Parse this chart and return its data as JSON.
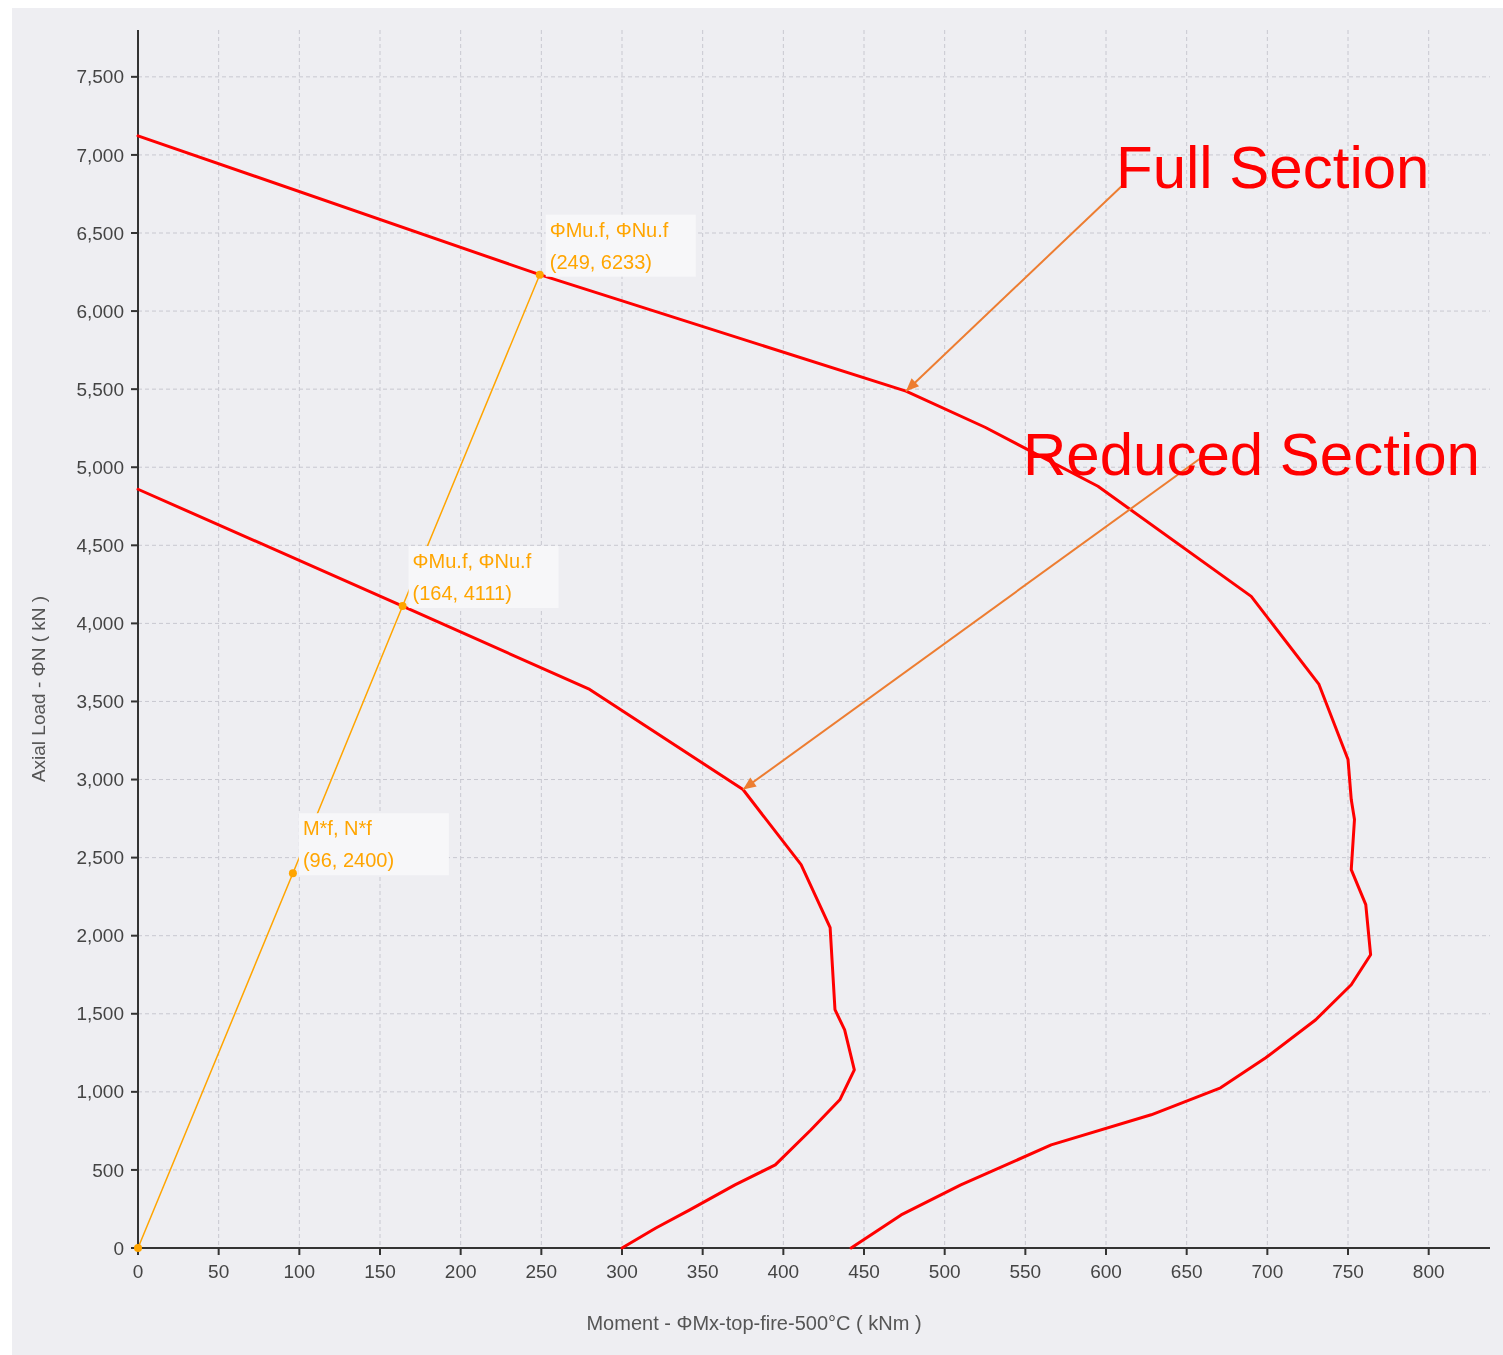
{
  "chart_data": {
    "type": "line",
    "xlabel": "Moment - ΦMx-top-fire-500°C ( kNm )",
    "ylabel": "Axial Load - ΦN ( kN )",
    "xlim": [
      0,
      838
    ],
    "ylim": [
      0,
      7800
    ],
    "xticks": [
      0,
      50,
      100,
      150,
      200,
      250,
      300,
      350,
      400,
      450,
      500,
      550,
      600,
      650,
      700,
      750,
      800
    ],
    "yticks": [
      0,
      500,
      {
        "value": 1000,
        "label": "1,000"
      },
      {
        "value": 1500,
        "label": "1,500"
      },
      {
        "value": 2000,
        "label": "2,000"
      },
      {
        "value": 2500,
        "label": "2,500"
      },
      {
        "value": 3000,
        "label": "3,000"
      },
      {
        "value": 3500,
        "label": "3,500"
      },
      {
        "value": 4000,
        "label": "4,000"
      },
      {
        "value": 4500,
        "label": "4,500"
      },
      {
        "value": 5000,
        "label": "5,000"
      },
      {
        "value": 5500,
        "label": "5,500"
      },
      {
        "value": 6000,
        "label": "6,000"
      },
      {
        "value": 6500,
        "label": "6,500"
      },
      {
        "value": 7000,
        "label": "7,000"
      },
      {
        "value": 7500,
        "label": "7,500"
      }
    ],
    "grid": true,
    "series": [
      {
        "color": "#ff0000",
        "x": [
          0,
          249,
          476,
          525,
          595,
          690,
          732,
          750,
          752,
          754,
          752,
          761,
          764,
          752,
          730,
          699,
          671,
          628,
          566,
          510,
          473,
          442
        ],
        "values": [
          7122,
          6233,
          5487,
          5256,
          4878,
          4173,
          3609,
          3128,
          2872,
          2744,
          2423,
          2199,
          1878,
          1686,
          1462,
          1218,
          1026,
          853,
          660,
          404,
          212,
          0
        ]
      },
      {
        "color": "#ff0000",
        "x": [
          0,
          164,
          280,
          375,
          411,
          429,
          432,
          438,
          444,
          435,
          417,
          395,
          370,
          342,
          321,
          300
        ],
        "values": [
          4859,
          4111,
          3577,
          2936,
          2455,
          2051,
          1526,
          1397,
          1141,
          949,
          756,
          532,
          404,
          244,
          128,
          0
        ]
      },
      {
        "color": "#ffa500",
        "marker": "circle",
        "x": [
          0,
          96,
          164,
          249
        ],
        "values": [
          0,
          2400,
          4111,
          6233
        ],
        "value_labels": [
          null,
          "(96, 2400)",
          "(164, 4111)",
          "(249, 6233)"
        ]
      }
    ],
    "annotations": [
      {
        "text": "Full Section",
        "x": 476,
        "y": 5487
      },
      {
        "text": "Reduced Section",
        "x": 375,
        "y": 2936
      },
      {
        "text": "M*f, N*f",
        "x": 96,
        "y": 2400
      },
      {
        "text": "ΦMu.f, ΦNu.f",
        "x": 164,
        "y": 4111
      },
      {
        "text": "ΦMu.f, ΦNu.f",
        "x": 249,
        "y": 6233
      }
    ]
  }
}
